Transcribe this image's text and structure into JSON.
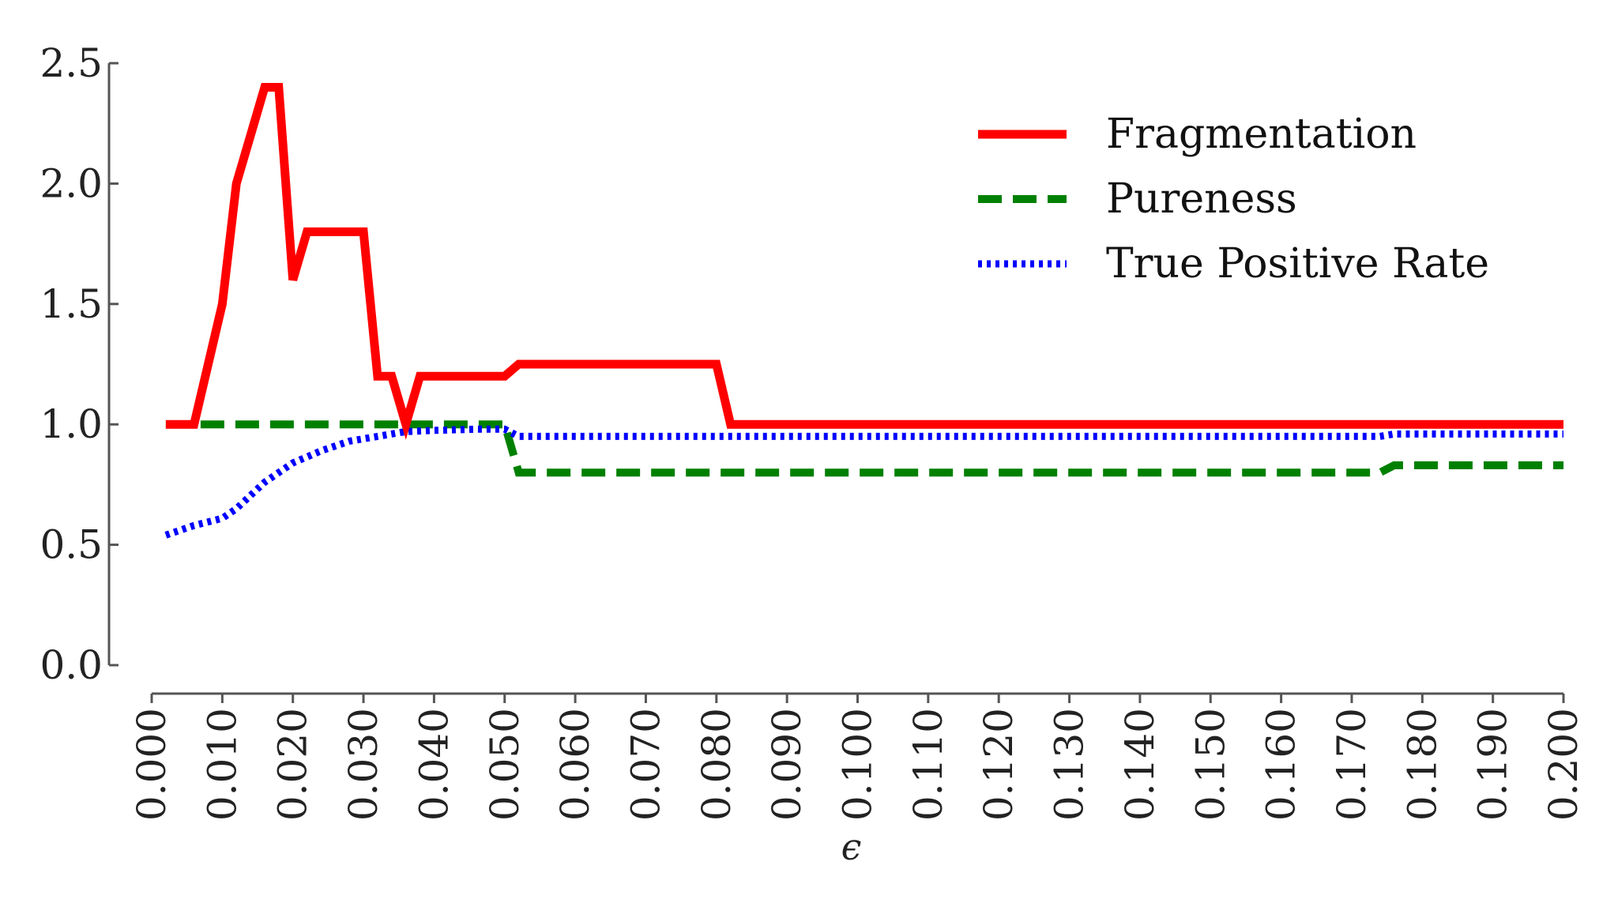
{
  "chart_data": {
    "type": "line",
    "title": "",
    "xlabel": "ϵ",
    "ylabel": "",
    "xlim": [
      0.0,
      0.2
    ],
    "ylim": [
      0.0,
      2.5
    ],
    "grid": false,
    "legend_position": "top-right",
    "x_ticks": [
      "0.000",
      "0.010",
      "0.020",
      "0.030",
      "0.040",
      "0.050",
      "0.060",
      "0.070",
      "0.080",
      "0.090",
      "0.100",
      "0.110",
      "0.120",
      "0.130",
      "0.140",
      "0.150",
      "0.160",
      "0.170",
      "0.180",
      "0.190",
      "0.200"
    ],
    "y_ticks": [
      "0.0",
      "0.5",
      "1.0",
      "1.5",
      "2.0",
      "2.5"
    ],
    "series": [
      {
        "name": "Fragmentation",
        "color": "#ff0000",
        "style": "solid",
        "points": [
          [
            0.002,
            1.0
          ],
          [
            0.006,
            1.0
          ],
          [
            0.01,
            1.5
          ],
          [
            0.012,
            2.0
          ],
          [
            0.016,
            2.4
          ],
          [
            0.018,
            2.4
          ],
          [
            0.02,
            1.6
          ],
          [
            0.022,
            1.8
          ],
          [
            0.03,
            1.8
          ],
          [
            0.032,
            1.2
          ],
          [
            0.034,
            1.2
          ],
          [
            0.036,
            1.0
          ],
          [
            0.038,
            1.2
          ],
          [
            0.05,
            1.2
          ],
          [
            0.052,
            1.25
          ],
          [
            0.08,
            1.25
          ],
          [
            0.082,
            1.0
          ],
          [
            0.2,
            1.0
          ]
        ]
      },
      {
        "name": "Pureness",
        "color": "#008000",
        "style": "dashed",
        "points": [
          [
            0.002,
            1.0
          ],
          [
            0.05,
            1.0
          ],
          [
            0.052,
            0.8
          ],
          [
            0.174,
            0.8
          ],
          [
            0.176,
            0.83
          ],
          [
            0.2,
            0.83
          ]
        ]
      },
      {
        "name": "True Positive Rate",
        "color": "#0000ff",
        "style": "dotted",
        "points": [
          [
            0.002,
            0.54
          ],
          [
            0.006,
            0.58
          ],
          [
            0.01,
            0.61
          ],
          [
            0.012,
            0.65
          ],
          [
            0.016,
            0.76
          ],
          [
            0.02,
            0.84
          ],
          [
            0.024,
            0.89
          ],
          [
            0.028,
            0.93
          ],
          [
            0.032,
            0.95
          ],
          [
            0.036,
            0.97
          ],
          [
            0.04,
            0.975
          ],
          [
            0.046,
            0.98
          ],
          [
            0.05,
            0.98
          ],
          [
            0.052,
            0.95
          ],
          [
            0.174,
            0.95
          ],
          [
            0.176,
            0.96
          ],
          [
            0.2,
            0.96
          ]
        ]
      }
    ]
  }
}
